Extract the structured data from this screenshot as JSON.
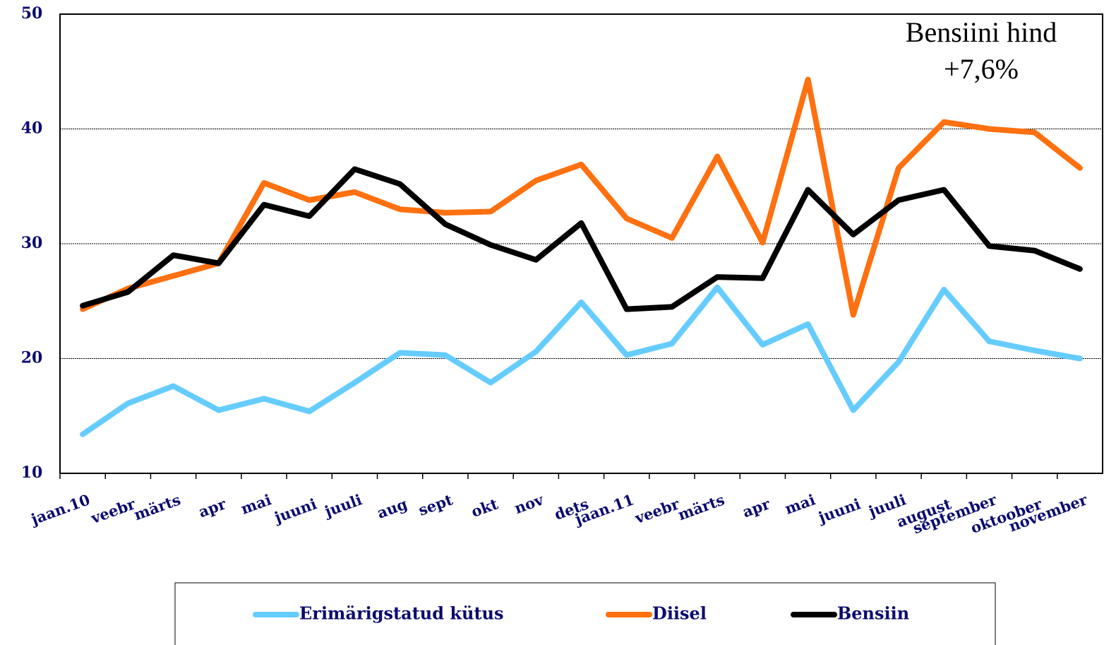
{
  "chart_data": {
    "type": "line",
    "annotation": [
      "Bensiini hind",
      "+7,6%"
    ],
    "categories": [
      "jaan.10",
      "veebr",
      "märts",
      "apr",
      "mai",
      "juuni",
      "juuli",
      "aug",
      "sept",
      "okt",
      "nov",
      "dets",
      "jaan.11",
      "veebr",
      "märts",
      "apr",
      "mai",
      "juuni",
      "juuli",
      "august",
      "september",
      "oktoober",
      "november"
    ],
    "series": [
      {
        "name": "Erimärigstatud kütus",
        "color": "#66ccff",
        "values": [
          13.4,
          16.1,
          17.6,
          15.5,
          16.5,
          15.4,
          17.9,
          20.5,
          20.3,
          17.9,
          20.6,
          24.9,
          20.3,
          21.3,
          26.2,
          21.2,
          23.0,
          15.5,
          19.7,
          26.0,
          21.5,
          20.7,
          20.0
        ]
      },
      {
        "name": "Diisel",
        "color": "#ff7010",
        "values": [
          24.3,
          26.1,
          27.2,
          28.3,
          35.3,
          33.8,
          34.5,
          33.0,
          32.7,
          32.8,
          35.5,
          36.9,
          32.2,
          30.5,
          37.6,
          30.1,
          44.3,
          23.8,
          36.6,
          40.6,
          40.0,
          39.7,
          36.6
        ]
      },
      {
        "name": "Bensiin",
        "color": "#000000",
        "values": [
          24.6,
          25.8,
          29.0,
          28.3,
          33.4,
          32.4,
          36.5,
          35.2,
          31.7,
          29.9,
          28.6,
          31.8,
          24.3,
          24.5,
          27.1,
          27.0,
          34.7,
          30.8,
          33.8,
          34.7,
          29.8,
          29.4,
          27.8
        ]
      }
    ],
    "ylim": [
      10,
      50
    ],
    "yticks": [
      10,
      20,
      30,
      40,
      50
    ],
    "grid": true
  }
}
